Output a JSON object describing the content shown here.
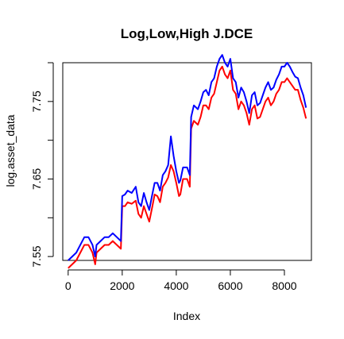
{
  "chart_data": {
    "type": "line",
    "title": "Log,Low,High J.DCE",
    "xlabel": "Index",
    "ylabel": "log.asset_data",
    "xlim": [
      -200,
      9000
    ],
    "ylim": [
      7.545,
      7.8
    ],
    "x_ticks": [
      0,
      2000,
      4000,
      6000,
      8000
    ],
    "x_tick_labels": [
      "0",
      "2000",
      "4000",
      "6000",
      "8000"
    ],
    "y_ticks": [
      7.55,
      7.6,
      7.65,
      7.7,
      7.75,
      7.8
    ],
    "y_tick_labels": [
      "7.55",
      "",
      "7.65",
      "",
      "7.75",
      ""
    ],
    "grid": false,
    "legend": "none",
    "series": [
      {
        "color": "#ff0000",
        "x": [
          0,
          150,
          300,
          450,
          600,
          750,
          900,
          1000,
          1050,
          1200,
          1350,
          1500,
          1650,
          1800,
          1950,
          2000,
          2100,
          2200,
          2350,
          2500,
          2600,
          2700,
          2800,
          2900,
          3000,
          3100,
          3200,
          3300,
          3400,
          3500,
          3600,
          3700,
          3800,
          3900,
          4000,
          4100,
          4150,
          4250,
          4400,
          4500,
          4550,
          4650,
          4800,
          4900,
          5000,
          5100,
          5200,
          5300,
          5400,
          5500,
          5600,
          5700,
          5800,
          5900,
          6000,
          6100,
          6200,
          6300,
          6400,
          6500,
          6600,
          6700,
          6800,
          6900,
          7000,
          7100,
          7200,
          7300,
          7400,
          7500,
          7600,
          7700,
          7800,
          7900,
          8000,
          8100,
          8200,
          8300,
          8400,
          8500,
          8600,
          8700,
          8800
        ],
        "values": [
          7.535,
          7.54,
          7.545,
          7.555,
          7.565,
          7.565,
          7.555,
          7.54,
          7.555,
          7.56,
          7.565,
          7.565,
          7.57,
          7.565,
          7.56,
          7.615,
          7.615,
          7.62,
          7.618,
          7.622,
          7.605,
          7.6,
          7.615,
          7.605,
          7.595,
          7.612,
          7.63,
          7.628,
          7.62,
          7.64,
          7.645,
          7.652,
          7.668,
          7.66,
          7.645,
          7.628,
          7.63,
          7.65,
          7.65,
          7.64,
          7.715,
          7.725,
          7.72,
          7.73,
          7.745,
          7.745,
          7.74,
          7.755,
          7.76,
          7.775,
          7.79,
          7.795,
          7.785,
          7.78,
          7.79,
          7.765,
          7.76,
          7.74,
          7.75,
          7.745,
          7.735,
          7.72,
          7.74,
          7.745,
          7.728,
          7.73,
          7.74,
          7.75,
          7.755,
          7.745,
          7.75,
          7.76,
          7.765,
          7.775,
          7.775,
          7.78,
          7.775,
          7.77,
          7.765,
          7.765,
          7.752,
          7.742,
          7.728
        ]
      },
      {
        "color": "#0000ff",
        "x": [
          0,
          150,
          300,
          450,
          600,
          750,
          900,
          1000,
          1050,
          1200,
          1350,
          1500,
          1650,
          1800,
          1950,
          2000,
          2100,
          2200,
          2350,
          2500,
          2600,
          2700,
          2800,
          2900,
          3000,
          3100,
          3200,
          3300,
          3400,
          3500,
          3600,
          3700,
          3800,
          3900,
          4000,
          4100,
          4150,
          4250,
          4400,
          4500,
          4550,
          4650,
          4800,
          4900,
          5000,
          5100,
          5200,
          5300,
          5400,
          5500,
          5600,
          5700,
          5800,
          5900,
          6000,
          6100,
          6200,
          6300,
          6400,
          6500,
          6600,
          6700,
          6800,
          6900,
          7000,
          7100,
          7200,
          7300,
          7400,
          7500,
          7600,
          7700,
          7800,
          7900,
          8000,
          8100,
          8200,
          8300,
          8400,
          8500,
          8600,
          8700,
          8800
        ],
        "values": [
          7.545,
          7.55,
          7.555,
          7.565,
          7.575,
          7.575,
          7.565,
          7.55,
          7.565,
          7.57,
          7.575,
          7.575,
          7.58,
          7.575,
          7.57,
          7.628,
          7.63,
          7.635,
          7.632,
          7.64,
          7.62,
          7.615,
          7.632,
          7.62,
          7.61,
          7.628,
          7.645,
          7.645,
          7.635,
          7.655,
          7.66,
          7.668,
          7.705,
          7.68,
          7.66,
          7.645,
          7.648,
          7.665,
          7.665,
          7.655,
          7.73,
          7.745,
          7.74,
          7.75,
          7.762,
          7.765,
          7.758,
          7.775,
          7.78,
          7.795,
          7.805,
          7.81,
          7.8,
          7.795,
          7.805,
          7.78,
          7.775,
          7.755,
          7.768,
          7.762,
          7.75,
          7.735,
          7.758,
          7.762,
          7.745,
          7.748,
          7.758,
          7.768,
          7.775,
          7.765,
          7.768,
          7.778,
          7.785,
          7.795,
          7.795,
          7.8,
          7.795,
          7.788,
          7.782,
          7.78,
          7.768,
          7.758,
          7.742
        ]
      }
    ]
  }
}
